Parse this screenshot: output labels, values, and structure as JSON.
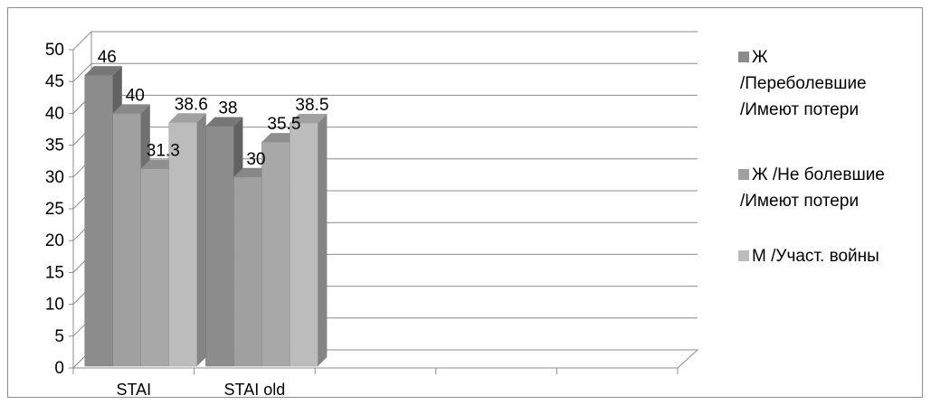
{
  "chart_data": {
    "type": "bar",
    "style": "3d-clustered-column",
    "categories": [
      "STAI",
      "STAI old",
      "",
      "",
      ""
    ],
    "series": [
      {
        "name": "Ж /Переболевшие /Имеют потери",
        "values": [
          46,
          38,
          null,
          null,
          null
        ],
        "color": "#8c8c8c"
      },
      {
        "name": "Ж /Не болевшие /Имеют потери",
        "values": [
          40,
          30,
          null,
          null,
          null
        ],
        "color": "#a0a0a0"
      },
      {
        "name": "",
        "values": [
          31.3,
          35.5,
          null,
          null,
          null
        ],
        "color": "#a8a8a8"
      },
      {
        "name": "М /Участ. войны",
        "values": [
          38.6,
          38.5,
          null,
          null,
          null
        ],
        "color": "#bcbcbc"
      }
    ],
    "data_labels": [
      [
        "46",
        "38"
      ],
      [
        "40",
        "30"
      ],
      [
        "31.3",
        "35.5"
      ],
      [
        "38.6",
        "38.5"
      ]
    ],
    "yticks": [
      "0",
      "5",
      "10",
      "15",
      "20",
      "25",
      "30",
      "35",
      "40",
      "45",
      "50"
    ],
    "ylim": [
      0,
      50
    ],
    "grid": true,
    "legend_position": "right",
    "title": "",
    "xlabel": "",
    "ylabel": ""
  },
  "legend": {
    "entries": [
      {
        "lines": [
          "Ж",
          "/Переболевшие",
          "/Имеют потери"
        ],
        "color": "#8c8c8c"
      },
      {
        "lines": [
          "Ж /Не болевшие",
          "/Имеют потери"
        ],
        "color": "#a0a0a0"
      },
      {
        "lines": [
          "М /Участ. войны"
        ],
        "color": "#bcbcbc"
      }
    ]
  }
}
